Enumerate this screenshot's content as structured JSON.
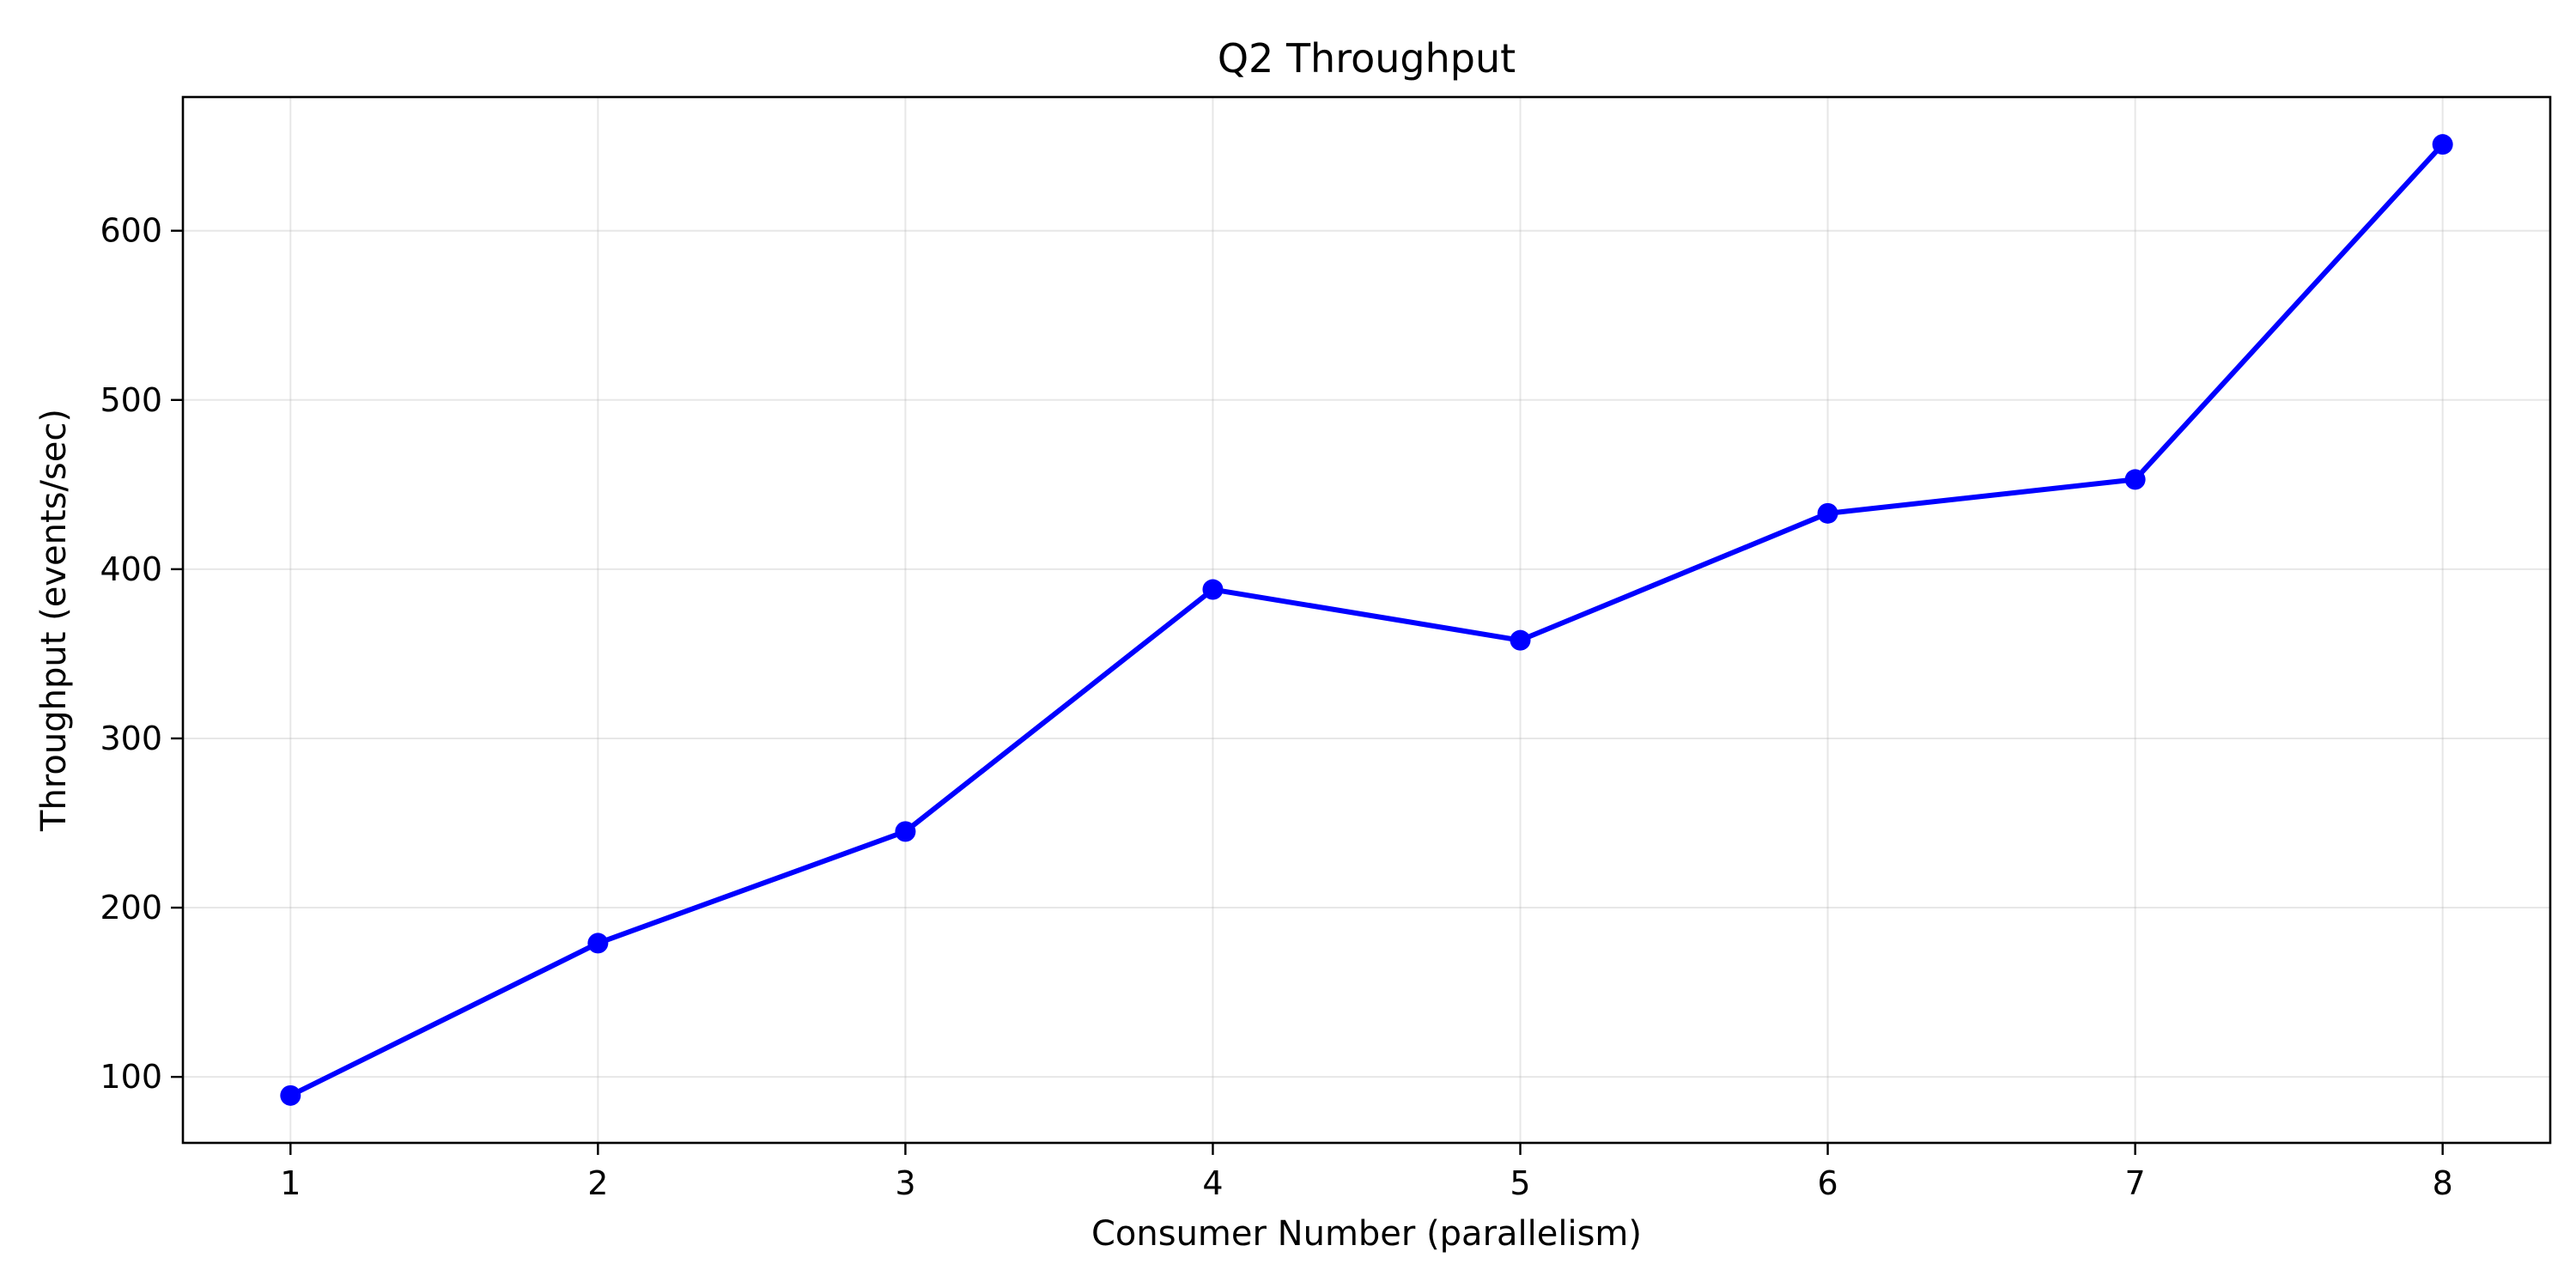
{
  "chart_data": {
    "type": "line",
    "title": "Q2 Throughput",
    "xlabel": "Consumer Number (parallelism)",
    "ylabel": "Throughput (events/sec)",
    "x": [
      1,
      2,
      3,
      4,
      5,
      6,
      7,
      8
    ],
    "series": [
      {
        "values": [
          89,
          179,
          245,
          388,
          358,
          433,
          453,
          651
        ],
        "color": "#0000ff",
        "marker": "circle"
      }
    ],
    "xlim": [
      0.65,
      8.35
    ],
    "ylim": [
      61,
      679
    ],
    "xticks": [
      1,
      2,
      3,
      4,
      5,
      6,
      7,
      8
    ],
    "yticks": [
      100,
      200,
      300,
      400,
      500,
      600
    ],
    "grid": true,
    "legend": "none"
  }
}
